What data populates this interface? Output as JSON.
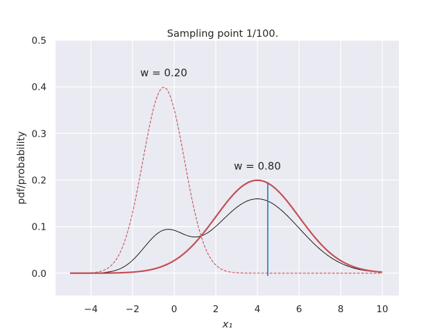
{
  "chart_data": {
    "type": "line",
    "title": "Sampling point 1/100.",
    "xlabel": "x₁",
    "ylabel": "pdf/probability",
    "xlim": [
      -5.7,
      10.8
    ],
    "ylim": [
      -0.048,
      0.5
    ],
    "xticks": [
      -4,
      -2,
      0,
      2,
      4,
      6,
      8,
      10
    ],
    "yticks": [
      0.0,
      0.1,
      0.2,
      0.3,
      0.4,
      0.5
    ],
    "xtick_labels": [
      "−4",
      "−2",
      "0",
      "2",
      "4",
      "6",
      "8",
      "10"
    ],
    "ytick_labels": [
      "0.0",
      "0.1",
      "0.2",
      "0.3",
      "0.4",
      "0.5"
    ],
    "grid": true,
    "background": "#eaeaf2",
    "x_range": [
      -5,
      10
    ],
    "components": [
      {
        "weight": 0.2,
        "mean": -0.5,
        "std": 1.0,
        "label": "w = 0.20",
        "label_x": -0.5,
        "label_y": 0.43,
        "color": "#c44e52",
        "style": "dashed"
      },
      {
        "weight": 0.8,
        "mean": 4.0,
        "std": 2.0,
        "label": "w = 0.80",
        "label_x": 4.0,
        "label_y": 0.23,
        "color": "#c44e52",
        "style": "solid-thick"
      }
    ],
    "mixture": {
      "color": "#000000",
      "style": "solid-thin"
    },
    "sample_line": {
      "x": 4.5,
      "y_top": 0.195,
      "y_bottom": -0.006,
      "color": "#1f77b4"
    }
  }
}
